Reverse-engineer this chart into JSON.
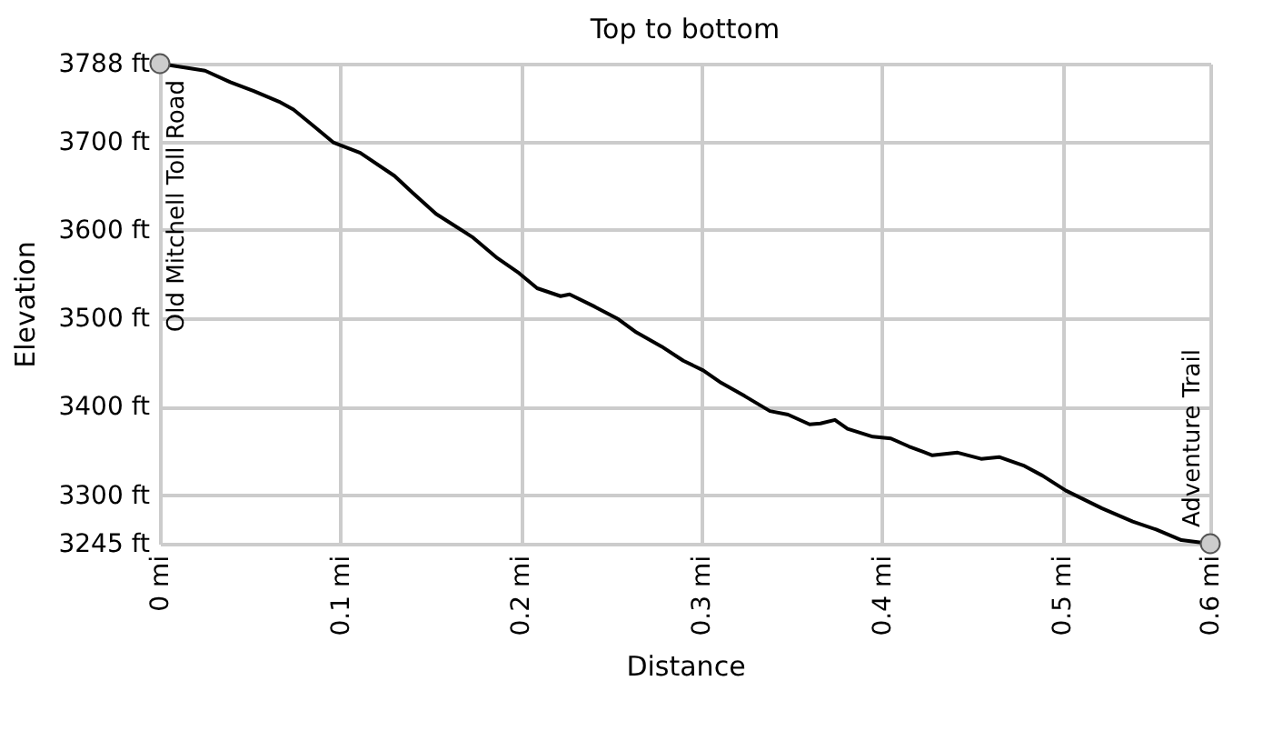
{
  "chart_data": {
    "type": "line",
    "title": "Top to bottom",
    "xlabel": "Distance",
    "ylabel": "Elevation",
    "x": [
      0,
      0.025,
      0.039,
      0.052,
      0.066,
      0.074,
      0.086,
      0.096,
      0.111,
      0.13,
      0.14,
      0.153,
      0.173,
      0.187,
      0.199,
      0.209,
      0.222,
      0.227,
      0.241,
      0.254,
      0.264,
      0.278,
      0.29,
      0.301,
      0.311,
      0.324,
      0.338,
      0.348,
      0.36,
      0.366,
      0.374,
      0.381,
      0.395,
      0.405,
      0.415,
      0.428,
      0.442,
      0.455,
      0.465,
      0.479,
      0.489,
      0.502,
      0.522,
      0.539,
      0.552,
      0.566,
      0.582
    ],
    "series": [
      {
        "color": "#000000",
        "values": [
          3788,
          3780,
          3767,
          3757,
          3745,
          3736,
          3716,
          3699,
          3687,
          3661,
          3642,
          3618,
          3592,
          3568,
          3551,
          3534,
          3525,
          3527,
          3513,
          3499,
          3484,
          3468,
          3452,
          3441,
          3427,
          3412,
          3395,
          3391,
          3380,
          3381,
          3385,
          3375,
          3366,
          3364,
          3355,
          3345,
          3348,
          3341,
          3343,
          3333,
          3322,
          3305,
          3285,
          3270,
          3261,
          3249,
          3245
        ]
      }
    ],
    "xlim": [
      0,
      0.582
    ],
    "xticks": [
      {
        "value": 0,
        "label": "0 mi"
      },
      {
        "value": 0.1,
        "label": "0.1 mi"
      },
      {
        "value": 0.2,
        "label": "0.2 mi"
      },
      {
        "value": 0.3,
        "label": "0.3 mi"
      },
      {
        "value": 0.4,
        "label": "0.4 mi"
      },
      {
        "value": 0.5,
        "label": "0.5 mi"
      },
      {
        "value": 0.582,
        "label": "0.6 mi"
      }
    ],
    "ylim": [
      3245,
      3788
    ],
    "yticks": [
      {
        "value": 3245,
        "label": "3245 ft"
      },
      {
        "value": 3300,
        "label": "3300 ft"
      },
      {
        "value": 3400,
        "label": "3400 ft"
      },
      {
        "value": 3500,
        "label": "3500 ft"
      },
      {
        "value": 3600,
        "label": "3600 ft"
      },
      {
        "value": 3700,
        "label": "3700 ft"
      },
      {
        "value": 3788,
        "label": "3788 ft"
      }
    ],
    "grid": true,
    "marker": "none",
    "line_style": "solid",
    "annotations": [
      {
        "text": "Old Mitchell Toll Road",
        "x": 0,
        "y": 3788
      },
      {
        "text": "Adventure Trail",
        "x": 0.582,
        "y": 3245
      }
    ]
  }
}
